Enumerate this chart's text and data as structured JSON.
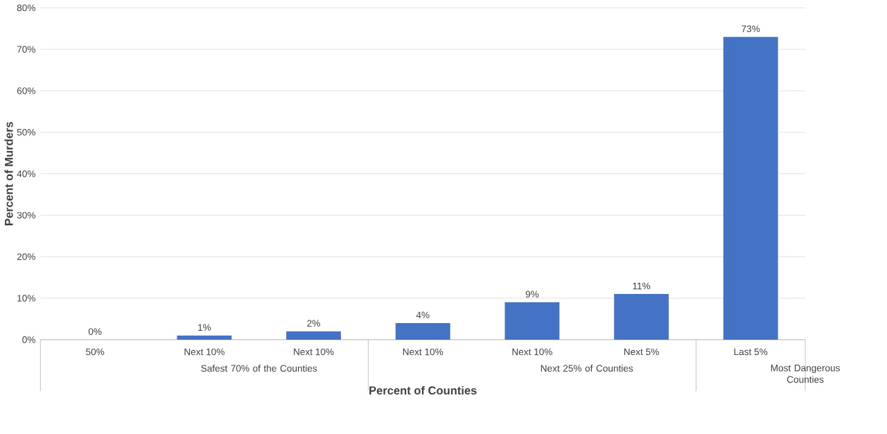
{
  "chart_data": {
    "type": "bar",
    "xlabel": "Percent of Counties",
    "ylabel": "Percent of Murders",
    "categories": [
      "50%",
      "Next 10%",
      "Next 10%",
      "Next 10%",
      "Next 10%",
      "Next 5%",
      "Last 5%"
    ],
    "values": [
      0,
      1,
      2,
      4,
      9,
      11,
      73
    ],
    "value_labels": [
      "0%",
      "1%",
      "2%",
      "4%",
      "9%",
      "11%",
      "73%"
    ],
    "color": "#4472c4",
    "ylim": [
      0,
      80
    ],
    "yticks": [
      {
        "value": 0,
        "label": "0%"
      },
      {
        "value": 10,
        "label": "10%"
      },
      {
        "value": 20,
        "label": "20%"
      },
      {
        "value": 30,
        "label": "30%"
      },
      {
        "value": 40,
        "label": "40%"
      },
      {
        "value": 50,
        "label": "50%"
      },
      {
        "value": 60,
        "label": "60%"
      },
      {
        "value": 70,
        "label": "70%"
      },
      {
        "value": 80,
        "label": "80%"
      }
    ],
    "grid": "y",
    "annotations": [
      "Safest 70% of the Counties",
      "Next 25% of Counties",
      "Most Dangerous Counties"
    ]
  }
}
